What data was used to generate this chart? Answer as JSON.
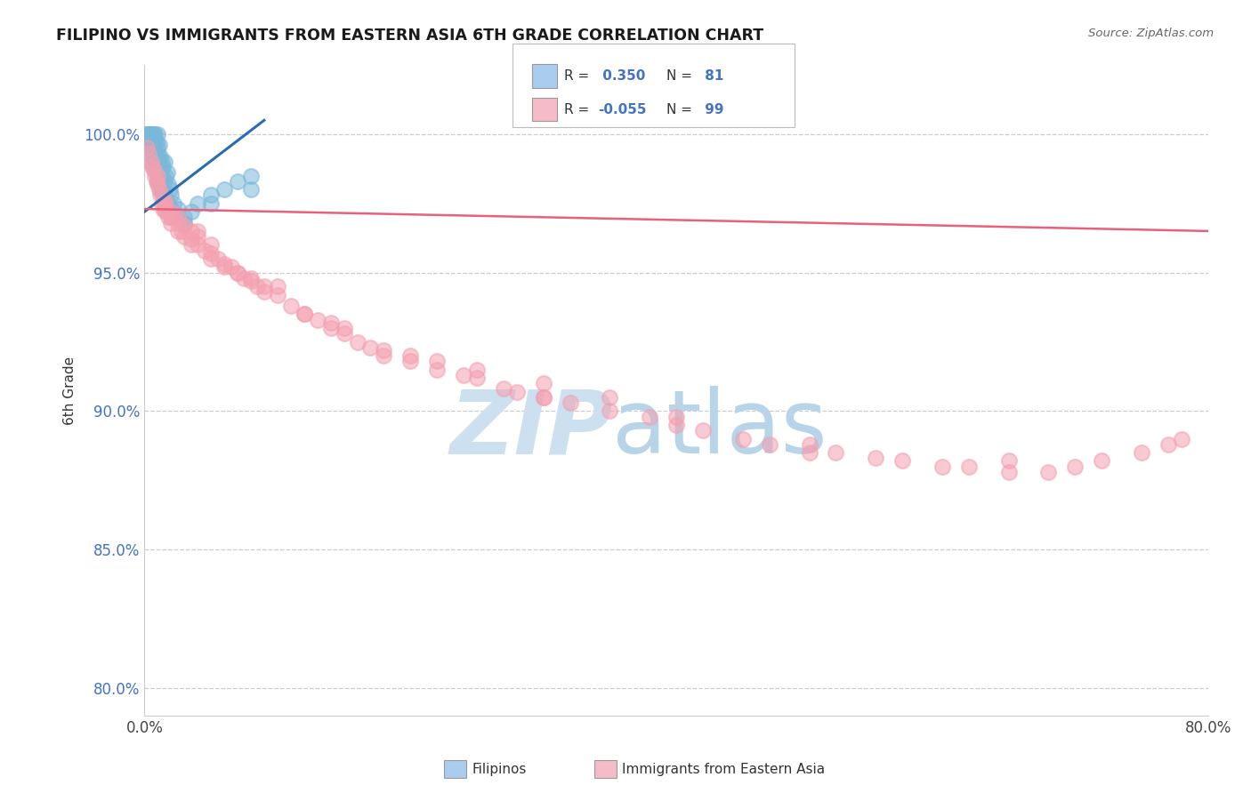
{
  "title": "FILIPINO VS IMMIGRANTS FROM EASTERN ASIA 6TH GRADE CORRELATION CHART",
  "source": "Source: ZipAtlas.com",
  "ylabel": "6th Grade",
  "xlim": [
    0.0,
    80.0
  ],
  "ylim": [
    79.0,
    102.5
  ],
  "yticks": [
    80.0,
    85.0,
    90.0,
    95.0,
    100.0
  ],
  "ytick_labels": [
    "80.0%",
    "85.0%",
    "90.0%",
    "95.0%",
    "100.0%"
  ],
  "xticks": [
    0.0,
    20.0,
    40.0,
    60.0,
    80.0
  ],
  "xtick_labels": [
    "0.0%",
    "",
    "",
    "",
    "80.0%"
  ],
  "blue_R": 0.35,
  "blue_N": 81,
  "pink_R": -0.055,
  "pink_N": 99,
  "blue_color": "#7ab8d9",
  "pink_color": "#f4a0b0",
  "blue_line_color": "#2b6cb0",
  "pink_line_color": "#e8607a",
  "legend_blue_fill": "#aaccee",
  "legend_pink_fill": "#f5bbc8",
  "watermark_zip_color": "#cce0f0",
  "watermark_atlas_color": "#b8d4e8",
  "title_color": "#1a1a1a",
  "source_color": "#666666",
  "ylabel_color": "#333333",
  "ytick_color": "#4472c4",
  "blue_x": [
    0.15,
    0.2,
    0.25,
    0.3,
    0.3,
    0.35,
    0.4,
    0.4,
    0.45,
    0.5,
    0.5,
    0.5,
    0.55,
    0.6,
    0.6,
    0.65,
    0.7,
    0.7,
    0.75,
    0.8,
    0.8,
    0.85,
    0.9,
    0.9,
    0.95,
    1.0,
    1.0,
    1.0,
    1.1,
    1.1,
    1.2,
    1.2,
    1.3,
    1.3,
    1.4,
    1.5,
    1.5,
    1.6,
    1.7,
    1.8,
    1.9,
    2.0,
    2.2,
    2.5,
    3.0,
    3.5,
    4.0,
    5.0,
    6.0,
    7.0,
    8.0,
    0.6,
    0.7,
    0.8,
    0.5,
    0.4,
    0.6,
    0.9,
    1.1,
    1.3,
    1.5,
    1.8,
    2.0,
    2.5,
    3.0,
    0.3,
    0.4,
    0.5,
    0.6,
    0.7,
    0.8,
    0.9,
    1.0,
    1.2,
    1.4,
    1.6,
    1.8,
    2.0,
    3.0,
    5.0,
    8.0
  ],
  "blue_y": [
    100.0,
    100.0,
    100.0,
    100.0,
    99.8,
    100.0,
    100.0,
    99.6,
    100.0,
    100.0,
    99.5,
    99.8,
    100.0,
    100.0,
    99.4,
    100.0,
    100.0,
    99.3,
    99.8,
    99.5,
    100.0,
    99.2,
    99.0,
    99.7,
    99.5,
    98.8,
    99.3,
    100.0,
    99.0,
    99.6,
    98.7,
    99.2,
    98.5,
    99.0,
    98.8,
    98.3,
    99.0,
    98.5,
    98.6,
    98.2,
    98.0,
    97.8,
    97.5,
    97.3,
    97.0,
    97.2,
    97.5,
    97.8,
    98.0,
    98.3,
    98.5,
    99.5,
    99.8,
    99.0,
    99.6,
    99.3,
    98.9,
    98.6,
    98.3,
    98.0,
    97.8,
    97.5,
    97.3,
    97.0,
    96.8,
    100.0,
    100.0,
    99.8,
    99.5,
    99.2,
    98.9,
    98.6,
    98.3,
    98.0,
    97.8,
    97.5,
    97.3,
    97.0,
    96.8,
    97.5,
    98.0
  ],
  "pink_x": [
    0.2,
    0.3,
    0.5,
    0.6,
    0.7,
    0.8,
    0.9,
    1.0,
    1.0,
    1.1,
    1.2,
    1.3,
    1.4,
    1.5,
    1.5,
    1.6,
    1.8,
    2.0,
    2.0,
    2.2,
    2.5,
    2.5,
    2.8,
    3.0,
    3.0,
    3.5,
    3.5,
    4.0,
    4.0,
    4.5,
    5.0,
    5.0,
    5.5,
    6.0,
    6.5,
    7.0,
    7.5,
    8.0,
    8.5,
    9.0,
    10.0,
    11.0,
    12.0,
    13.0,
    14.0,
    15.0,
    16.0,
    17.0,
    18.0,
    20.0,
    22.0,
    24.0,
    25.0,
    27.0,
    28.0,
    30.0,
    30.0,
    32.0,
    35.0,
    35.0,
    38.0,
    40.0,
    42.0,
    45.0,
    47.0,
    50.0,
    52.0,
    55.0,
    57.0,
    60.0,
    62.0,
    65.0,
    68.0,
    70.0,
    72.0,
    75.0,
    77.0,
    78.0,
    1.5,
    2.5,
    3.5,
    5.0,
    7.0,
    10.0,
    15.0,
    20.0,
    25.0,
    6.0,
    8.0,
    12.0,
    4.0,
    9.0,
    14.0,
    18.0,
    22.0,
    30.0,
    40.0,
    50.0,
    65.0
  ],
  "pink_y": [
    99.5,
    99.3,
    99.0,
    98.8,
    98.7,
    98.5,
    98.3,
    98.2,
    98.5,
    98.0,
    97.8,
    97.5,
    97.3,
    97.3,
    97.6,
    97.2,
    97.0,
    96.8,
    97.2,
    97.0,
    96.8,
    97.0,
    96.5,
    96.3,
    96.7,
    96.2,
    96.5,
    96.0,
    96.3,
    95.8,
    95.7,
    96.0,
    95.5,
    95.3,
    95.2,
    95.0,
    94.8,
    94.7,
    94.5,
    94.3,
    94.2,
    93.8,
    93.5,
    93.3,
    93.0,
    92.8,
    92.5,
    92.3,
    92.0,
    91.8,
    91.5,
    91.3,
    91.2,
    90.8,
    90.7,
    90.5,
    91.0,
    90.3,
    90.0,
    90.5,
    89.8,
    89.5,
    89.3,
    89.0,
    88.8,
    88.5,
    88.5,
    88.3,
    88.2,
    88.0,
    88.0,
    87.8,
    87.8,
    88.0,
    88.2,
    88.5,
    88.8,
    89.0,
    97.5,
    96.5,
    96.0,
    95.5,
    95.0,
    94.5,
    93.0,
    92.0,
    91.5,
    95.2,
    94.8,
    93.5,
    96.5,
    94.5,
    93.2,
    92.2,
    91.8,
    90.5,
    89.8,
    88.8,
    88.2
  ],
  "blue_line_x": [
    0.0,
    9.0
  ],
  "blue_line_y": [
    97.2,
    100.5
  ],
  "pink_line_x": [
    0.0,
    80.0
  ],
  "pink_line_y": [
    97.3,
    96.5
  ]
}
